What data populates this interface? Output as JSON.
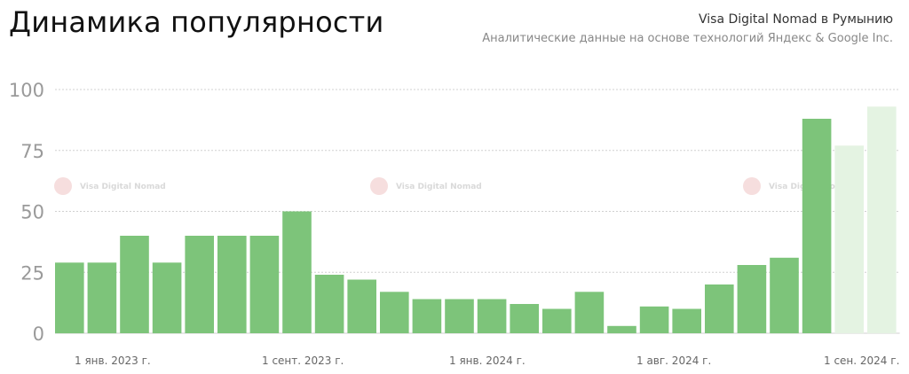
{
  "header": {
    "title": "Динамика популярности",
    "subtitle": "Visa Digital Nomad в Румынию",
    "source": "Аналитические данные на основе технологий Яндекс & Google Inc."
  },
  "watermark": "Visa Digital Nomad",
  "colors": {
    "bar": "#7dc47a",
    "bar_forecast": "#e4f3e2",
    "grid": "#d0d0d0"
  },
  "chart_data": {
    "type": "bar",
    "title": "Динамика популярности",
    "ylim": [
      0,
      100
    ],
    "yticks": [
      0,
      25,
      50,
      75,
      100
    ],
    "x_tick_labels": [
      "1 янв. 2023 г.",
      "1 сент. 2023 г.",
      "1 янв. 2024 г.",
      "1 авг. 2024 г.",
      "1 сен. 2024 г."
    ],
    "values": [
      29,
      29,
      40,
      29,
      40,
      40,
      40,
      50,
      24,
      22,
      17,
      14,
      14,
      14,
      12,
      10,
      17,
      3,
      11,
      10,
      20,
      28,
      31,
      88,
      77,
      93
    ],
    "forecast_from_index": 24,
    "grid": true
  }
}
